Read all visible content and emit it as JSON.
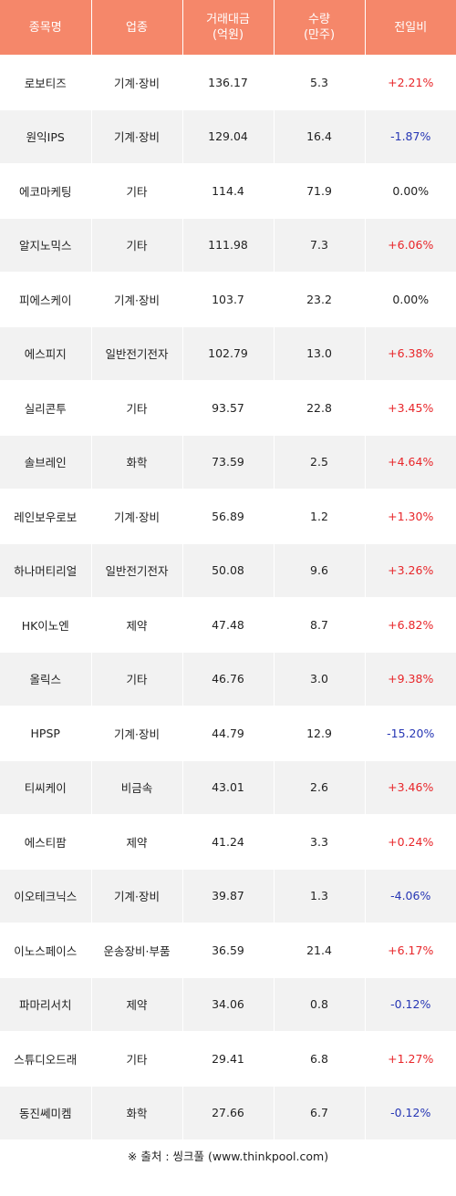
{
  "headers": [
    "종목명",
    "업종",
    "거래대금\n(억원)",
    "수량\n(만주)",
    "전일비"
  ],
  "rows": [
    {
      "name": "로보티즈",
      "sector": "기계·장비",
      "amount": "136.17",
      "volume": "5.3",
      "change": "+2.21%",
      "dir": "up"
    },
    {
      "name": "원익IPS",
      "sector": "기계·장비",
      "amount": "129.04",
      "volume": "16.4",
      "change": "-1.87%",
      "dir": "down"
    },
    {
      "name": "에코마케팅",
      "sector": "기타",
      "amount": "114.4",
      "volume": "71.9",
      "change": "0.00%",
      "dir": "flat"
    },
    {
      "name": "알지노믹스",
      "sector": "기타",
      "amount": "111.98",
      "volume": "7.3",
      "change": "+6.06%",
      "dir": "up"
    },
    {
      "name": "피에스케이",
      "sector": "기계·장비",
      "amount": "103.7",
      "volume": "23.2",
      "change": "0.00%",
      "dir": "flat"
    },
    {
      "name": "에스피지",
      "sector": "일반전기전자",
      "amount": "102.79",
      "volume": "13.0",
      "change": "+6.38%",
      "dir": "up"
    },
    {
      "name": "실리콘투",
      "sector": "기타",
      "amount": "93.57",
      "volume": "22.8",
      "change": "+3.45%",
      "dir": "up"
    },
    {
      "name": "솔브레인",
      "sector": "화학",
      "amount": "73.59",
      "volume": "2.5",
      "change": "+4.64%",
      "dir": "up"
    },
    {
      "name": "레인보우로보",
      "sector": "기계·장비",
      "amount": "56.89",
      "volume": "1.2",
      "change": "+1.30%",
      "dir": "up"
    },
    {
      "name": "하나머티리얼",
      "sector": "일반전기전자",
      "amount": "50.08",
      "volume": "9.6",
      "change": "+3.26%",
      "dir": "up"
    },
    {
      "name": "HK이노엔",
      "sector": "제약",
      "amount": "47.48",
      "volume": "8.7",
      "change": "+6.82%",
      "dir": "up"
    },
    {
      "name": "올릭스",
      "sector": "기타",
      "amount": "46.76",
      "volume": "3.0",
      "change": "+9.38%",
      "dir": "up"
    },
    {
      "name": "HPSP",
      "sector": "기계·장비",
      "amount": "44.79",
      "volume": "12.9",
      "change": "-15.20%",
      "dir": "down"
    },
    {
      "name": "티씨케이",
      "sector": "비금속",
      "amount": "43.01",
      "volume": "2.6",
      "change": "+3.46%",
      "dir": "up"
    },
    {
      "name": "에스티팜",
      "sector": "제약",
      "amount": "41.24",
      "volume": "3.3",
      "change": "+0.24%",
      "dir": "up"
    },
    {
      "name": "이오테크닉스",
      "sector": "기계·장비",
      "amount": "39.87",
      "volume": "1.3",
      "change": "-4.06%",
      "dir": "down"
    },
    {
      "name": "이노스페이스",
      "sector": "운송장비·부품",
      "amount": "36.59",
      "volume": "21.4",
      "change": "+6.17%",
      "dir": "up"
    },
    {
      "name": "파마리서치",
      "sector": "제약",
      "amount": "34.06",
      "volume": "0.8",
      "change": "-0.12%",
      "dir": "down"
    },
    {
      "name": "스튜디오드래",
      "sector": "기타",
      "amount": "29.41",
      "volume": "6.8",
      "change": "+1.27%",
      "dir": "up"
    },
    {
      "name": "동진쎄미켐",
      "sector": "화학",
      "amount": "27.66",
      "volume": "6.7",
      "change": "-0.12%",
      "dir": "down"
    }
  ],
  "colors": {
    "header_bg": "#f5876a",
    "up": "#e8262a",
    "down": "#2636b4",
    "row_alt": "#f2f2f2"
  },
  "source": "※ 출처 : 씽크풀 (www.thinkpool.com)"
}
